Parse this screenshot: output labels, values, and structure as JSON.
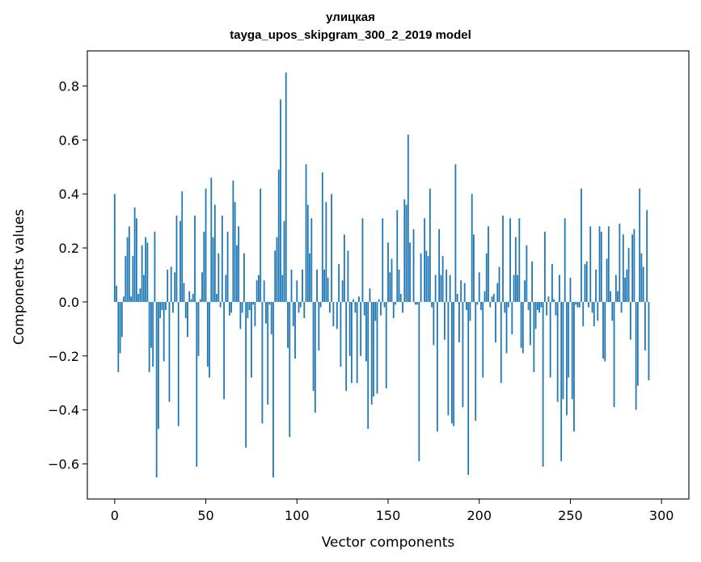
{
  "chart_data": {
    "type": "bar",
    "title": "улицкая",
    "subtitle": "tayga_upos_skipgram_300_2_2019 model",
    "xlabel": "Vector components",
    "ylabel": "Components values",
    "xlim": [
      -15,
      315
    ],
    "ylim": [
      -0.73,
      0.93
    ],
    "xticks": [
      0,
      50,
      100,
      150,
      200,
      250,
      300
    ],
    "xtick_labels": [
      "0",
      "50",
      "100",
      "150",
      "200",
      "250",
      "300"
    ],
    "yticks": [
      -0.6,
      -0.4,
      -0.2,
      0.0,
      0.2,
      0.4,
      0.6,
      0.8
    ],
    "ytick_labels": [
      "−0.6",
      "−0.4",
      "−0.2",
      "0.0",
      "0.2",
      "0.4",
      "0.6",
      "0.8"
    ],
    "bar_color": "#1f77b4",
    "grid": false,
    "values": [
      0.4,
      0.06,
      -0.26,
      -0.19,
      -0.13,
      0.02,
      0.17,
      0.24,
      0.28,
      0.02,
      0.17,
      0.35,
      0.31,
      0.03,
      0.05,
      0.21,
      0.1,
      0.24,
      0.22,
      -0.26,
      -0.17,
      -0.24,
      0.26,
      -0.65,
      -0.47,
      -0.06,
      -0.03,
      -0.22,
      -0.03,
      0.12,
      -0.37,
      0.13,
      -0.04,
      0.11,
      0.32,
      -0.46,
      0.3,
      0.41,
      0.07,
      -0.06,
      -0.13,
      0.04,
      0.01,
      0.03,
      0.32,
      -0.61,
      -0.2,
      0.01,
      0.11,
      0.26,
      0.42,
      -0.24,
      -0.28,
      0.46,
      0.24,
      0.36,
      0.03,
      0.18,
      -0.02,
      0.32,
      -0.36,
      0.1,
      0.26,
      -0.05,
      -0.04,
      0.45,
      0.37,
      0.21,
      0.28,
      -0.1,
      -0.04,
      0.18,
      -0.54,
      -0.06,
      -0.03,
      -0.28,
      -0.01,
      -0.09,
      0.08,
      0.1,
      0.42,
      -0.45,
      0.08,
      -0.08,
      -0.38,
      -0.01,
      -0.12,
      -0.65,
      0.19,
      0.24,
      0.49,
      0.75,
      0.1,
      0.3,
      0.85,
      -0.17,
      -0.5,
      0.12,
      -0.09,
      -0.21,
      0.08,
      -0.04,
      -0.02,
      0.12,
      -0.06,
      0.51,
      0.36,
      0.18,
      0.31,
      -0.33,
      -0.41,
      0.12,
      -0.18,
      -0.02,
      0.48,
      0.12,
      0.37,
      0.09,
      -0.04,
      0.4,
      -0.09,
      0.0,
      -0.1,
      0.14,
      -0.24,
      0.08,
      0.25,
      -0.33,
      0.19,
      -0.2,
      -0.3,
      0.01,
      -0.04,
      -0.3,
      0.02,
      -0.2,
      0.31,
      -0.05,
      -0.22,
      -0.47,
      0.05,
      -0.38,
      -0.35,
      -0.07,
      -0.34,
      0.01,
      -0.05,
      0.31,
      -0.02,
      -0.32,
      0.22,
      0.11,
      0.16,
      -0.06,
      -0.01,
      0.34,
      0.12,
      0.03,
      -0.04,
      0.38,
      0.36,
      0.62,
      0.22,
      0.0,
      0.27,
      -0.01,
      -0.01,
      -0.59,
      0.18,
      0.0,
      0.31,
      0.19,
      0.17,
      0.42,
      -0.02,
      -0.16,
      0.1,
      -0.48,
      0.27,
      0.1,
      0.17,
      -0.14,
      0.12,
      -0.42,
      0.1,
      -0.45,
      -0.46,
      0.51,
      0.03,
      -0.15,
      0.08,
      -0.39,
      0.07,
      -0.03,
      -0.64,
      -0.07,
      0.4,
      0.25,
      -0.44,
      -0.01,
      0.11,
      -0.03,
      -0.28,
      0.04,
      0.18,
      0.28,
      -0.02,
      0.02,
      0.03,
      -0.15,
      0.07,
      0.13,
      -0.3,
      0.32,
      -0.04,
      -0.19,
      -0.02,
      0.31,
      -0.12,
      0.1,
      0.24,
      0.1,
      0.31,
      -0.17,
      -0.19,
      0.08,
      0.21,
      -0.03,
      -0.16,
      0.15,
      -0.26,
      -0.1,
      -0.03,
      -0.04,
      -0.02,
      -0.61,
      0.26,
      -0.05,
      0.02,
      -0.28,
      0.14,
      0.01,
      -0.05,
      -0.37,
      0.1,
      -0.59,
      -0.36,
      0.31,
      -0.42,
      -0.28,
      0.09,
      -0.36,
      -0.48,
      -0.01,
      -0.02,
      -0.02,
      0.42,
      -0.09,
      0.14,
      0.15,
      -0.02,
      0.28,
      -0.04,
      -0.09,
      0.12,
      -0.07,
      0.28,
      0.26,
      -0.21,
      -0.22,
      0.16,
      0.28,
      0.04,
      -0.07,
      -0.39,
      0.1,
      0.04,
      0.29,
      -0.04,
      0.25,
      0.09,
      0.12,
      0.2,
      -0.14,
      0.25,
      0.27,
      -0.4,
      -0.31,
      0.42,
      0.18,
      0.13,
      -0.18,
      0.34,
      -0.29
    ]
  }
}
